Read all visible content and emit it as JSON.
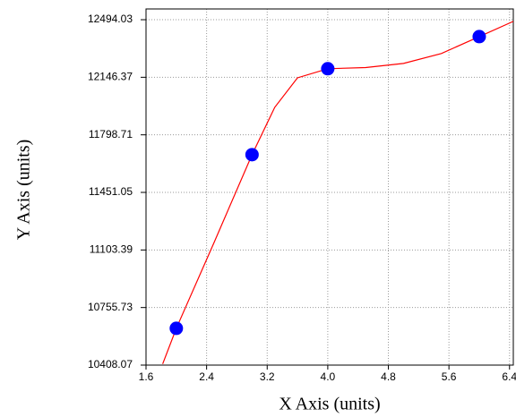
{
  "chart_data": {
    "type": "scatter",
    "x_label": "X Axis (units)",
    "y_label": "Y Axis (units)",
    "points": {
      "color": "#0000ff",
      "x": [
        2.0,
        3.0,
        4.0,
        6.0
      ],
      "values": [
        10630,
        11679,
        12198,
        12392
      ]
    },
    "curve": {
      "color": "#ff0000",
      "x": [
        1.82,
        2.0,
        2.5,
        3.0,
        3.3,
        3.6,
        4.0,
        4.5,
        5.0,
        5.5,
        6.0,
        6.45
      ],
      "values": [
        10415,
        10630,
        11150,
        11679,
        11965,
        12143,
        12198,
        12205,
        12230,
        12290,
        12392,
        12484
      ]
    },
    "xlim": [
      1.6,
      6.45
    ],
    "xticks": [
      1.6,
      2.4,
      3.2,
      {
        "value": 4.0,
        "label": "4.0"
      },
      4.8,
      5.6,
      6.4
    ],
    "ylim": [
      10408.07,
      12559
    ],
    "yticks": [
      10408.07,
      10755.73,
      11103.39,
      11451.05,
      11798.71,
      12146.37,
      12494.03
    ],
    "grid": true
  }
}
